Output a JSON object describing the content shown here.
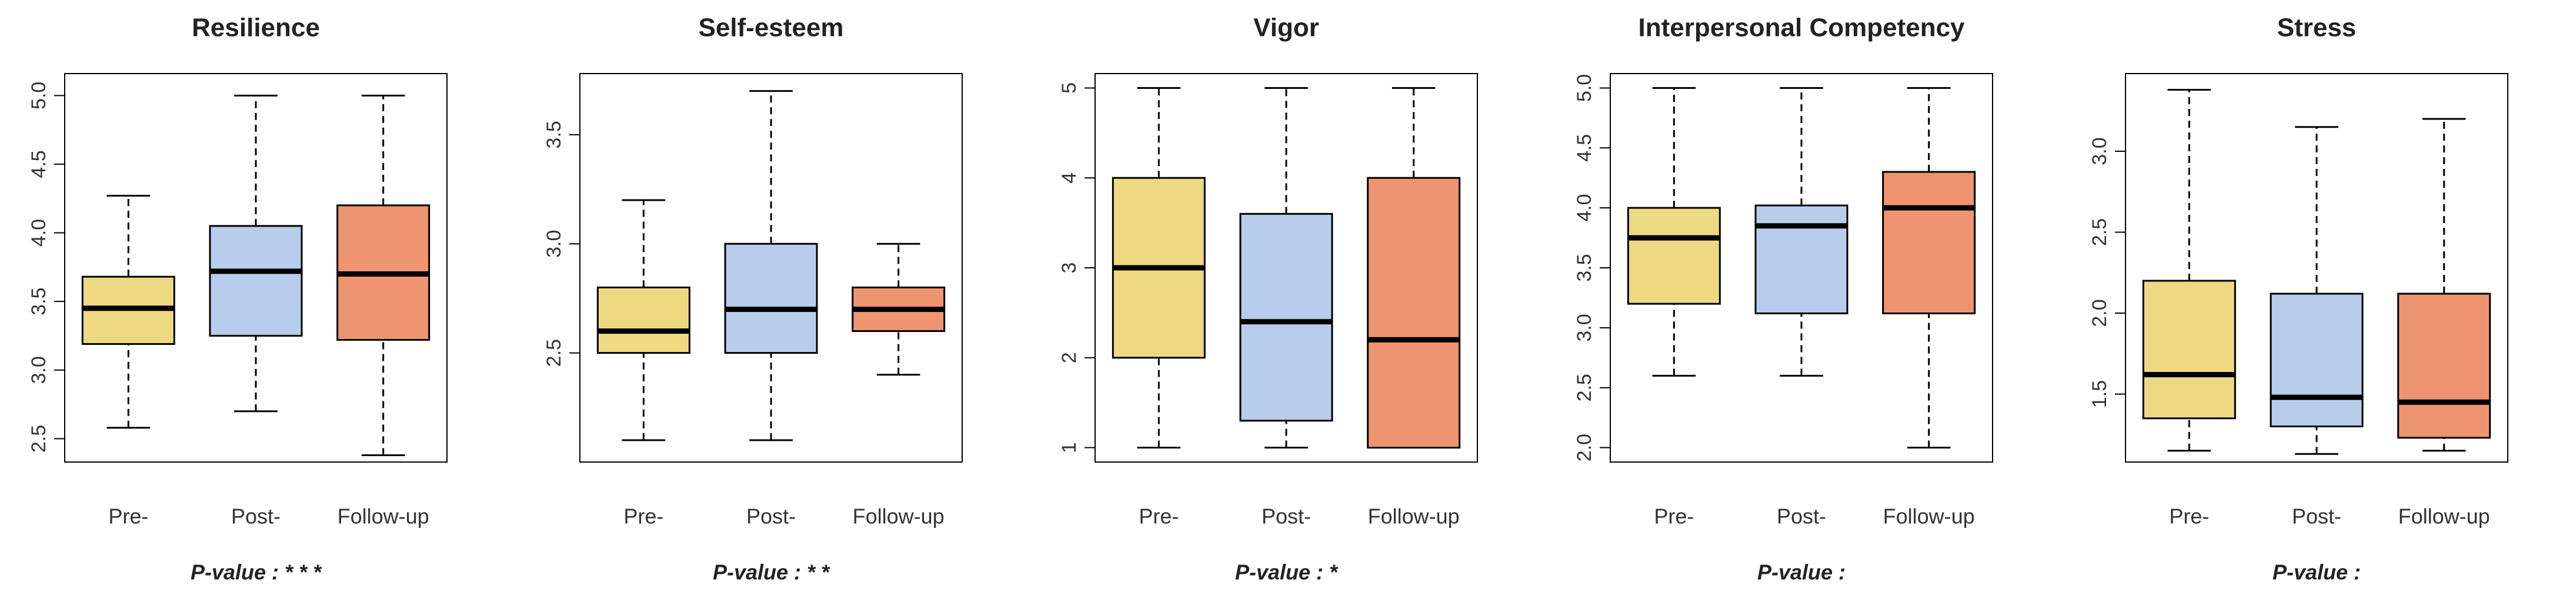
{
  "chart_data": [
    {
      "type": "box",
      "title": "Resilience",
      "categories": [
        "Pre-",
        "Post-",
        "Follow-up"
      ],
      "colors": [
        "#EDD982",
        "#B7CDEB",
        "#EE9470"
      ],
      "values": [
        [
          2.58,
          3.19,
          3.45,
          3.68,
          4.27
        ],
        [
          2.7,
          3.25,
          3.72,
          4.05,
          5.0
        ],
        [
          2.38,
          3.22,
          3.7,
          4.2,
          5.0
        ]
      ],
      "ylim": [
        2.33,
        5.16
      ],
      "yticks": [
        2.5,
        {
          "value": 3,
          "label": "3.0"
        },
        3.5,
        {
          "value": 4,
          "label": "4.0"
        },
        4.5,
        {
          "value": 5,
          "label": "5.0"
        }
      ],
      "footnote": "P-value : * * *"
    },
    {
      "type": "box",
      "title": "Self-esteem",
      "categories": [
        "Pre-",
        "Post-",
        "Follow-up"
      ],
      "colors": [
        "#EDD982",
        "#B7CDEB",
        "#EE9470"
      ],
      "values": [
        [
          2.1,
          2.5,
          2.6,
          2.8,
          3.2
        ],
        [
          2.1,
          2.5,
          2.7,
          3.0,
          3.7
        ],
        [
          2.4,
          2.6,
          2.7,
          2.8,
          3.0
        ]
      ],
      "ylim": [
        2.0,
        3.78
      ],
      "yticks": [
        2.5,
        {
          "value": 3,
          "label": "3.0"
        },
        3.5
      ],
      "footnote": "P-value : * *"
    },
    {
      "type": "box",
      "title": "Vigor",
      "categories": [
        "Pre-",
        "Post-",
        "Follow-up"
      ],
      "colors": [
        "#EDD982",
        "#B7CDEB",
        "#EE9470"
      ],
      "values": [
        [
          1,
          2,
          3,
          4,
          5
        ],
        [
          1,
          1.3,
          2.4,
          3.6,
          5
        ],
        [
          1,
          1,
          2.2,
          4,
          5
        ]
      ],
      "ylim": [
        0.84,
        5.16
      ],
      "yticks": [
        1,
        2,
        3,
        4,
        5
      ],
      "footnote": "P-value : *"
    },
    {
      "type": "box",
      "title": "Interpersonal Competency",
      "categories": [
        "Pre-",
        "Post-",
        "Follow-up"
      ],
      "colors": [
        "#EDD982",
        "#B7CDEB",
        "#EE9470"
      ],
      "values": [
        [
          2.6,
          3.2,
          3.75,
          4.0,
          5.0
        ],
        [
          2.6,
          3.12,
          3.85,
          4.02,
          5.0
        ],
        [
          2.0,
          3.12,
          4.0,
          4.3,
          5.0
        ]
      ],
      "ylim": [
        1.88,
        5.12
      ],
      "yticks": [
        {
          "value": 2,
          "label": "2.0"
        },
        2.5,
        {
          "value": 3,
          "label": "3.0"
        },
        3.5,
        {
          "value": 4,
          "label": "4.0"
        },
        4.5,
        {
          "value": 5,
          "label": "5.0"
        }
      ],
      "footnote": "P-value :"
    },
    {
      "type": "box",
      "title": "Stress",
      "categories": [
        "Pre-",
        "Post-",
        "Follow-up"
      ],
      "colors": [
        "#EDD982",
        "#B7CDEB",
        "#EE9470"
      ],
      "values": [
        [
          1.15,
          1.35,
          1.62,
          2.2,
          3.38
        ],
        [
          1.13,
          1.3,
          1.48,
          2.12,
          3.15
        ],
        [
          1.15,
          1.23,
          1.45,
          2.12,
          3.2
        ]
      ],
      "ylim": [
        1.08,
        3.48
      ],
      "yticks": [
        1.5,
        {
          "value": 2,
          "label": "2.0"
        },
        2.5,
        {
          "value": 3,
          "label": "3.0"
        }
      ],
      "footnote": "P-value :"
    }
  ]
}
